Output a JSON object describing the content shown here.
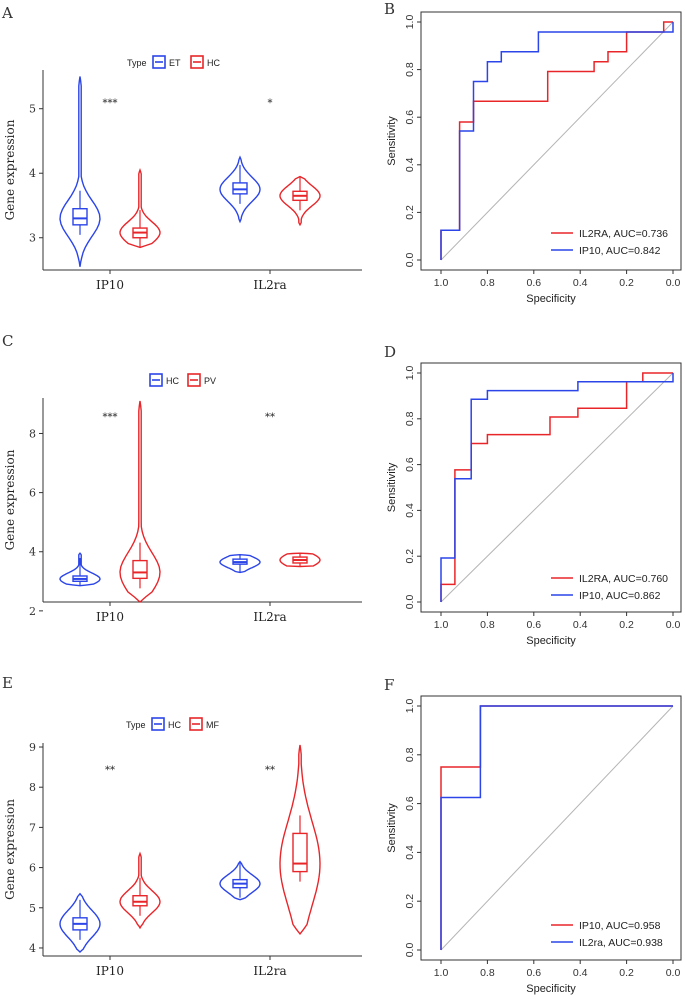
{
  "chart_data": [
    {
      "type": "violin",
      "panel": "A",
      "ylabel": "Gene expression",
      "ylim": [
        2.5,
        5.6
      ],
      "yticks": [
        3,
        4,
        5
      ],
      "categories": [
        "IP10",
        "IL2ra"
      ],
      "legend": {
        "title": "Type",
        "entries": [
          "ET",
          "HC"
        ],
        "colors": [
          "#2B45E8",
          "#E8262A"
        ]
      },
      "significance": [
        "***",
        "*"
      ],
      "series": [
        {
          "name": "ET",
          "color": "#2B45E8",
          "groups": [
            {
              "min": 2.55,
              "q1": 3.2,
              "median": 3.3,
              "q3": 3.45,
              "max": 5.5
            },
            {
              "min": 3.25,
              "q1": 3.68,
              "median": 3.75,
              "q3": 3.85,
              "max": 4.25
            }
          ]
        },
        {
          "name": "HC",
          "color": "#E8262A",
          "groups": [
            {
              "min": 2.85,
              "q1": 3.0,
              "median": 3.08,
              "q3": 3.15,
              "max": 4.05
            },
            {
              "min": 3.2,
              "q1": 3.58,
              "median": 3.65,
              "q3": 3.72,
              "max": 3.95
            }
          ]
        }
      ]
    },
    {
      "type": "roc",
      "panel": "B",
      "xlabel": "Specificity",
      "ylabel": "Sensitivity",
      "xticks": [
        "1.0",
        "0.8",
        "0.6",
        "0.4",
        "0.2",
        "0.0"
      ],
      "yticks": [
        "0.0",
        "0.2",
        "0.4",
        "0.6",
        "0.8",
        "1.0"
      ],
      "series": [
        {
          "name": "IL2RA",
          "label": "IL2RA, AUC=0.736",
          "color": "#E8262A",
          "points": [
            [
              1.0,
              0.0
            ],
            [
              1.0,
              0.125
            ],
            [
              0.92,
              0.125
            ],
            [
              0.92,
              0.58
            ],
            [
              0.86,
              0.58
            ],
            [
              0.86,
              0.667
            ],
            [
              0.54,
              0.667
            ],
            [
              0.54,
              0.792
            ],
            [
              0.34,
              0.792
            ],
            [
              0.34,
              0.833
            ],
            [
              0.28,
              0.833
            ],
            [
              0.28,
              0.875
            ],
            [
              0.2,
              0.875
            ],
            [
              0.2,
              0.958
            ],
            [
              0.04,
              0.958
            ],
            [
              0.04,
              1.0
            ],
            [
              0.0,
              1.0
            ]
          ]
        },
        {
          "name": "IP10",
          "label": "IP10, AUC=0.842",
          "color": "#2B45E8",
          "points": [
            [
              1.0,
              0.0
            ],
            [
              1.0,
              0.125
            ],
            [
              0.92,
              0.125
            ],
            [
              0.92,
              0.542
            ],
            [
              0.86,
              0.542
            ],
            [
              0.86,
              0.75
            ],
            [
              0.8,
              0.75
            ],
            [
              0.8,
              0.833
            ],
            [
              0.74,
              0.833
            ],
            [
              0.74,
              0.875
            ],
            [
              0.58,
              0.875
            ],
            [
              0.58,
              0.958
            ],
            [
              0.0,
              0.958
            ],
            [
              0.0,
              1.0
            ]
          ]
        }
      ]
    },
    {
      "type": "violin",
      "panel": "C",
      "ylabel": "Gene expression",
      "ylim": [
        2.3,
        9.2
      ],
      "yticks": [
        2,
        4,
        6,
        8
      ],
      "categories": [
        "IP10",
        "IL2ra"
      ],
      "legend": {
        "title": "",
        "entries": [
          "HC",
          "PV"
        ],
        "colors": [
          "#2B45E8",
          "#E8262A"
        ]
      },
      "significance": [
        "***",
        "**"
      ],
      "series": [
        {
          "name": "HC",
          "color": "#2B45E8",
          "groups": [
            {
              "min": 2.85,
              "q1": 3.0,
              "median": 3.08,
              "q3": 3.18,
              "max": 3.95
            },
            {
              "min": 3.3,
              "q1": 3.58,
              "median": 3.65,
              "q3": 3.75,
              "max": 3.9
            }
          ]
        },
        {
          "name": "PV",
          "color": "#E8262A",
          "groups": [
            {
              "min": 2.3,
              "q1": 3.1,
              "median": 3.3,
              "q3": 3.7,
              "max": 9.1
            },
            {
              "min": 3.5,
              "q1": 3.62,
              "median": 3.72,
              "q3": 3.82,
              "max": 3.95
            }
          ]
        }
      ]
    },
    {
      "type": "roc",
      "panel": "D",
      "xlabel": "Specificity",
      "ylabel": "Sensitivity",
      "xticks": [
        "1.0",
        "0.8",
        "0.6",
        "0.4",
        "0.2",
        "0.0"
      ],
      "yticks": [
        "0.0",
        "0.2",
        "0.4",
        "0.6",
        "0.8",
        "1.0"
      ],
      "series": [
        {
          "name": "IL2RA",
          "label": "IL2RA, AUC=0.760",
          "color": "#E8262A",
          "points": [
            [
              1.0,
              0.0
            ],
            [
              1.0,
              0.077
            ],
            [
              0.94,
              0.077
            ],
            [
              0.94,
              0.577
            ],
            [
              0.87,
              0.577
            ],
            [
              0.87,
              0.692
            ],
            [
              0.8,
              0.692
            ],
            [
              0.8,
              0.731
            ],
            [
              0.53,
              0.731
            ],
            [
              0.53,
              0.808
            ],
            [
              0.41,
              0.808
            ],
            [
              0.41,
              0.846
            ],
            [
              0.2,
              0.846
            ],
            [
              0.2,
              0.962
            ],
            [
              0.13,
              0.962
            ],
            [
              0.13,
              1.0
            ],
            [
              0.0,
              1.0
            ]
          ]
        },
        {
          "name": "IP10",
          "label": "IP10, AUC=0.862",
          "color": "#2B45E8",
          "points": [
            [
              1.0,
              0.0
            ],
            [
              1.0,
              0.192
            ],
            [
              0.94,
              0.192
            ],
            [
              0.94,
              0.538
            ],
            [
              0.87,
              0.538
            ],
            [
              0.87,
              0.885
            ],
            [
              0.8,
              0.885
            ],
            [
              0.8,
              0.923
            ],
            [
              0.41,
              0.923
            ],
            [
              0.41,
              0.962
            ],
            [
              0.0,
              0.962
            ],
            [
              0.0,
              1.0
            ]
          ]
        }
      ]
    },
    {
      "type": "violin",
      "panel": "E",
      "ylabel": "Gene expression",
      "ylim": [
        3.8,
        9.1
      ],
      "yticks": [
        4,
        5,
        6,
        7,
        8,
        9
      ],
      "categories": [
        "IP10",
        "IL2ra"
      ],
      "legend": {
        "title": "Type",
        "entries": [
          "HC",
          "MF"
        ],
        "colors": [
          "#2B45E8",
          "#E8262A"
        ]
      },
      "significance": [
        "**",
        "**"
      ],
      "series": [
        {
          "name": "HC",
          "color": "#2B45E8",
          "groups": [
            {
              "min": 3.9,
              "q1": 4.45,
              "median": 4.6,
              "q3": 4.75,
              "max": 5.35
            },
            {
              "min": 5.2,
              "q1": 5.5,
              "median": 5.6,
              "q3": 5.7,
              "max": 6.15
            }
          ]
        },
        {
          "name": "MF",
          "color": "#E8262A",
          "groups": [
            {
              "min": 4.5,
              "q1": 5.05,
              "median": 5.15,
              "q3": 5.3,
              "max": 6.35
            },
            {
              "min": 4.35,
              "q1": 5.9,
              "median": 6.1,
              "q3": 6.85,
              "max": 9.05
            }
          ]
        }
      ]
    },
    {
      "type": "roc",
      "panel": "F",
      "xlabel": "Specificity",
      "ylabel": "Sensitivity",
      "xticks": [
        "1.0",
        "0.8",
        "0.6",
        "0.4",
        "0.2",
        "0.0"
      ],
      "yticks": [
        "0.0",
        "0.2",
        "0.4",
        "0.6",
        "0.8",
        "1.0"
      ],
      "series": [
        {
          "name": "IP10",
          "label": "IP10, AUC=0.958",
          "color": "#E8262A",
          "points": [
            [
              1.0,
              0.0
            ],
            [
              1.0,
              0.75
            ],
            [
              0.83,
              0.75
            ],
            [
              0.83,
              1.0
            ],
            [
              0.0,
              1.0
            ]
          ]
        },
        {
          "name": "IL2ra",
          "label": "IL2ra, AUC=0.938",
          "color": "#2B45E8",
          "points": [
            [
              1.0,
              0.0
            ],
            [
              1.0,
              0.625
            ],
            [
              0.83,
              0.625
            ],
            [
              0.83,
              1.0
            ],
            [
              0.0,
              1.0
            ]
          ]
        }
      ]
    }
  ],
  "panels": {
    "A": "A",
    "B": "B",
    "C": "C",
    "D": "D",
    "E": "E",
    "F": "F"
  }
}
